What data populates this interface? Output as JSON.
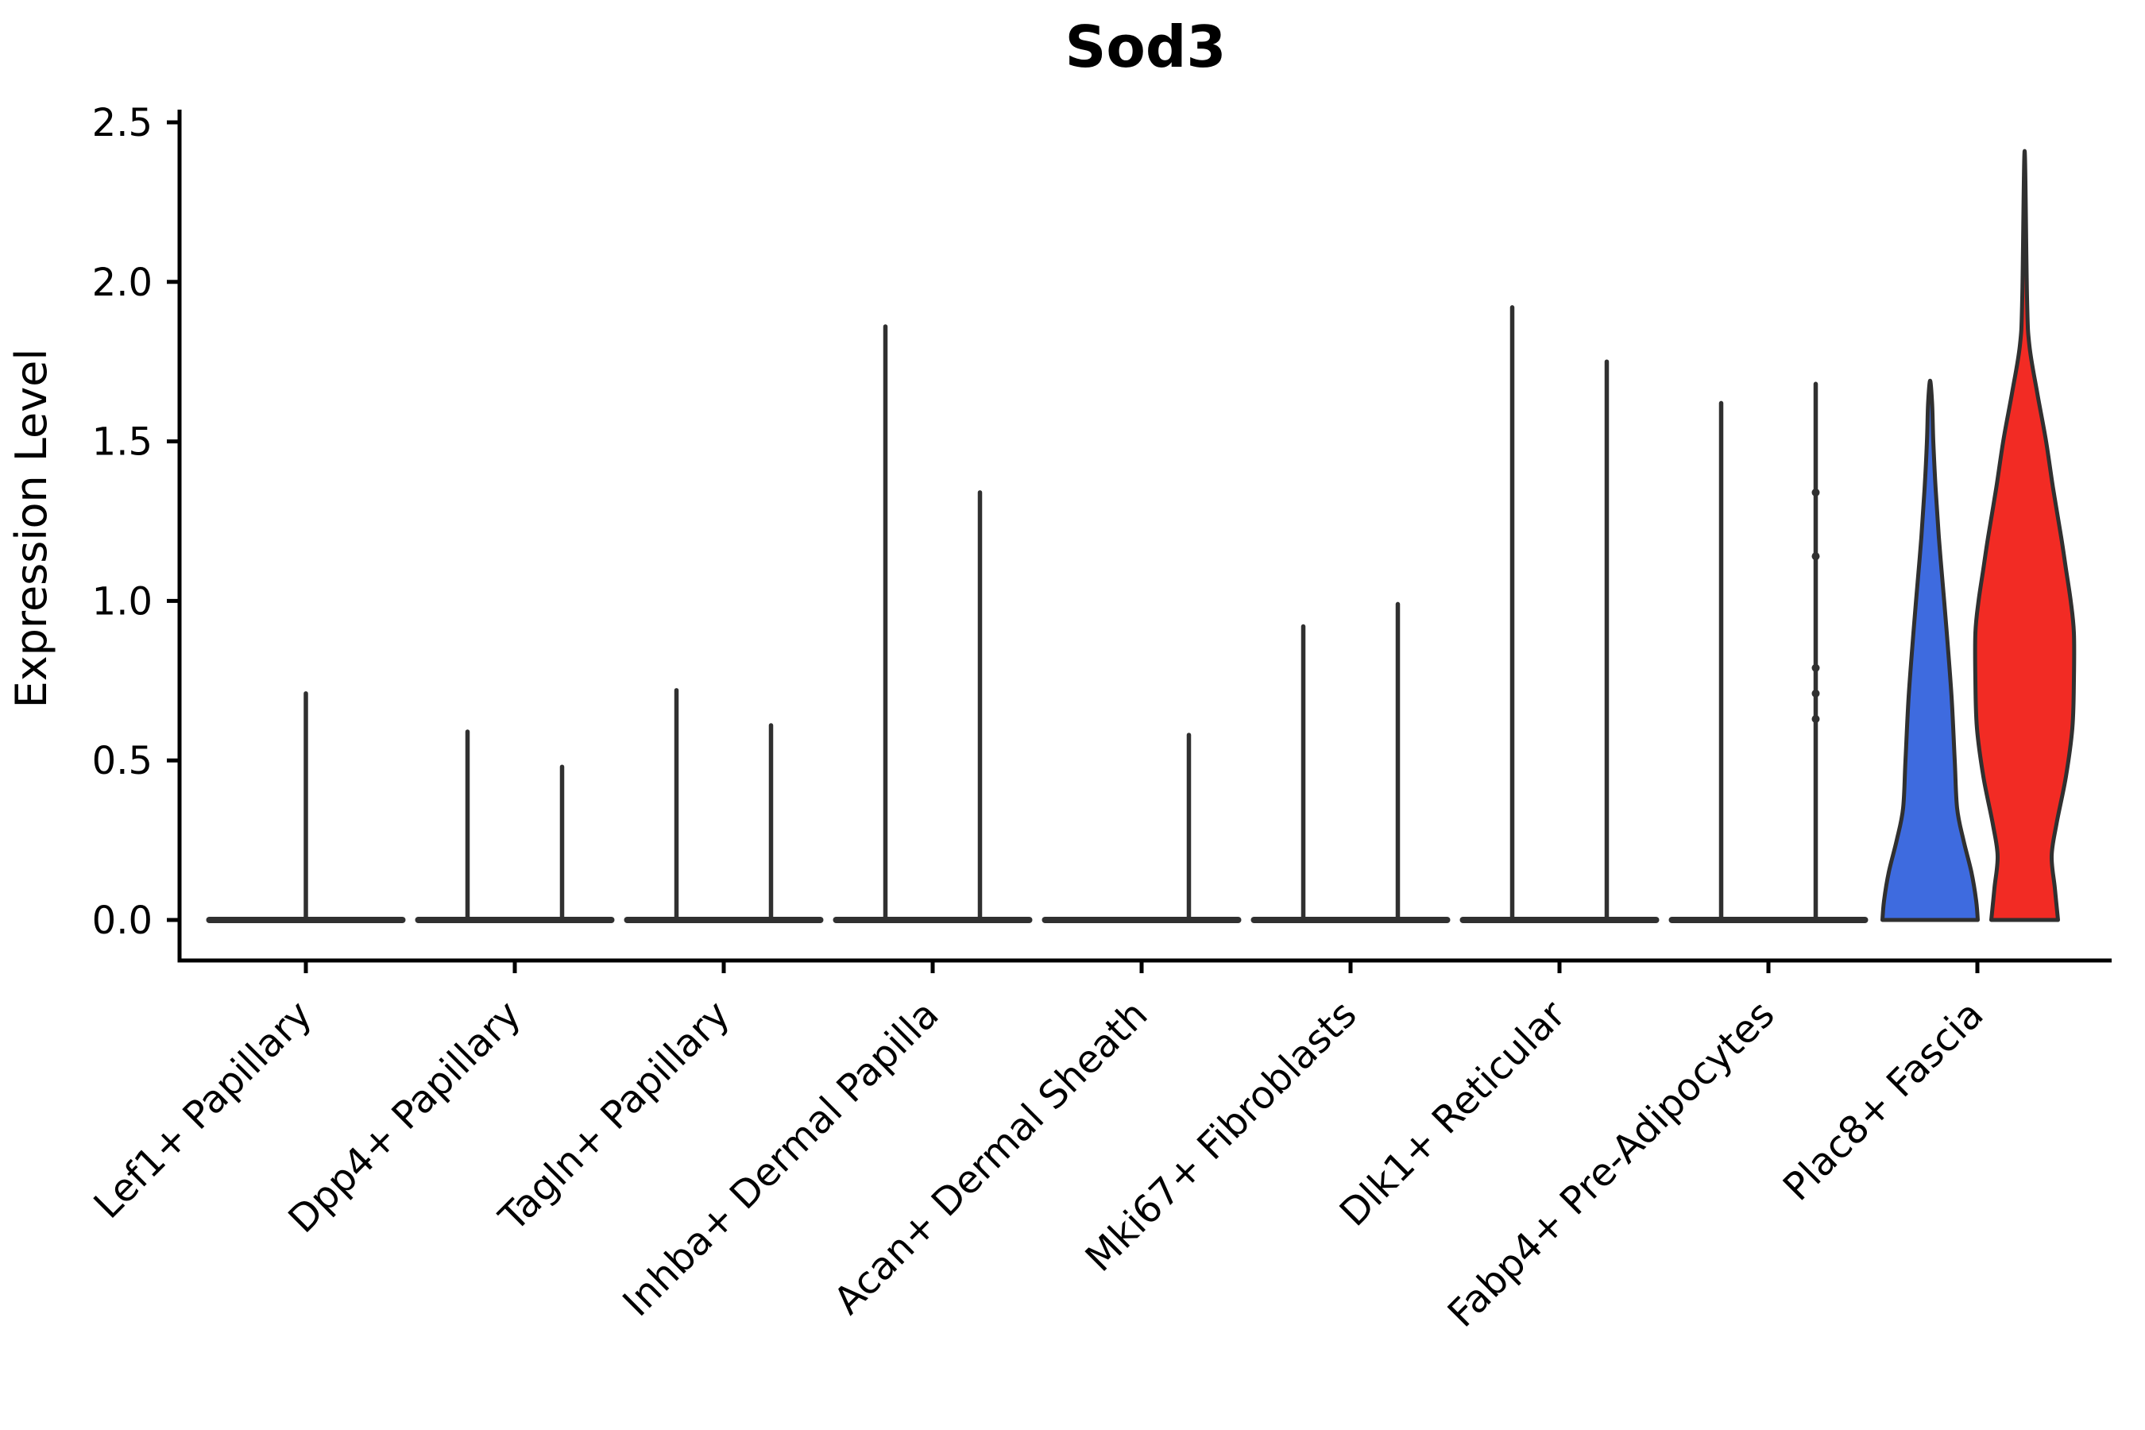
{
  "chart_data": {
    "type": "violin",
    "title": "Sod3",
    "ylabel": "Expression Level",
    "xlabel": "",
    "ylim": [
      -0.13,
      2.53
    ],
    "yticks": [
      0.0,
      0.5,
      1.0,
      1.5,
      2.0,
      2.5
    ],
    "ytick_labels": [
      "0.0",
      "0.5",
      "1.0",
      "1.5",
      "2.0",
      "2.5"
    ],
    "x_tick_rotation": 45,
    "grid": false,
    "legend": "none",
    "categories": [
      "Lef1+ Papillary",
      "Dpp4+ Papillary",
      "Tagln+ Papillary",
      "Inhba+ Dermal Papilla",
      "Acan+ Dermal Sheath",
      "Mki67+ Fibroblasts",
      "Dlk1+ Reticular",
      "Fabp4+ Pre-Adipocytes",
      "Plac8+ Fascia"
    ],
    "colors": {
      "outline": "#303030",
      "axis": "#000000",
      "fascia_left_fill": "#3E6BDF",
      "fascia_right_fill": "#F22B24"
    },
    "violins": [
      {
        "category": "Lef1+ Papillary",
        "zero_line": "full",
        "items": [
          {
            "pos": "center",
            "peak": 0.71,
            "style": "spike"
          }
        ]
      },
      {
        "category": "Dpp4+ Papillary",
        "zero_line": "full",
        "items": [
          {
            "pos": "left",
            "peak": 0.59,
            "style": "spike"
          },
          {
            "pos": "right",
            "peak": 0.48,
            "style": "spike"
          }
        ]
      },
      {
        "category": "Tagln+ Papillary",
        "zero_line": "full",
        "items": [
          {
            "pos": "left",
            "peak": 0.72,
            "style": "spike"
          },
          {
            "pos": "right",
            "peak": 0.61,
            "style": "spike"
          }
        ]
      },
      {
        "category": "Inhba+ Dermal Papilla",
        "zero_line": "full",
        "items": [
          {
            "pos": "left",
            "peak": 1.86,
            "style": "spike"
          },
          {
            "pos": "right",
            "peak": 1.34,
            "style": "spike"
          }
        ]
      },
      {
        "category": "Acan+ Dermal Sheath",
        "zero_line": "full",
        "items": [
          {
            "pos": "right",
            "peak": 0.58,
            "style": "spike"
          }
        ]
      },
      {
        "category": "Mki67+ Fibroblasts",
        "zero_line": "full",
        "items": [
          {
            "pos": "left",
            "peak": 0.92,
            "style": "spike"
          },
          {
            "pos": "right",
            "peak": 0.99,
            "style": "spike"
          }
        ]
      },
      {
        "category": "Dlk1+ Reticular",
        "zero_line": "full",
        "items": [
          {
            "pos": "left",
            "peak": 1.92,
            "style": "spike"
          },
          {
            "pos": "right",
            "peak": 1.75,
            "style": "spike"
          }
        ]
      },
      {
        "category": "Fabp4+ Pre-Adipocytes",
        "zero_line": "full",
        "items": [
          {
            "pos": "left",
            "peak": 1.62,
            "style": "spike"
          },
          {
            "pos": "right",
            "peak": 1.68,
            "style": "spike",
            "points": [
              1.34,
              1.14,
              0.79,
              0.71,
              0.63
            ]
          }
        ]
      },
      {
        "category": "Plac8+ Fascia",
        "zero_line": "none",
        "items": [
          {
            "pos": "left",
            "peak": 1.69,
            "style": "violin",
            "fill": "#3E6BDF",
            "profile": [
              [
                0,
                60
              ],
              [
                0.06,
                58
              ],
              [
                0.15,
                52
              ],
              [
                0.25,
                42
              ],
              [
                0.35,
                34
              ],
              [
                0.5,
                31
              ],
              [
                0.7,
                27
              ],
              [
                0.9,
                21
              ],
              [
                1.05,
                16
              ],
              [
                1.2,
                11
              ],
              [
                1.35,
                7
              ],
              [
                1.5,
                4
              ],
              [
                1.62,
                2.5
              ]
            ]
          },
          {
            "pos": "right",
            "peak": 2.41,
            "style": "violin",
            "fill": "#F22B24",
            "profile": [
              [
                0,
                42
              ],
              [
                0.1,
                38
              ],
              [
                0.2,
                34
              ],
              [
                0.3,
                40
              ],
              [
                0.45,
                52
              ],
              [
                0.6,
                60
              ],
              [
                0.75,
                62
              ],
              [
                0.9,
                62
              ],
              [
                1.0,
                58
              ],
              [
                1.1,
                52
              ],
              [
                1.2,
                46
              ],
              [
                1.35,
                36
              ],
              [
                1.5,
                27
              ],
              [
                1.65,
                16
              ],
              [
                1.8,
                6
              ],
              [
                1.95,
                3
              ]
            ]
          }
        ]
      }
    ]
  }
}
